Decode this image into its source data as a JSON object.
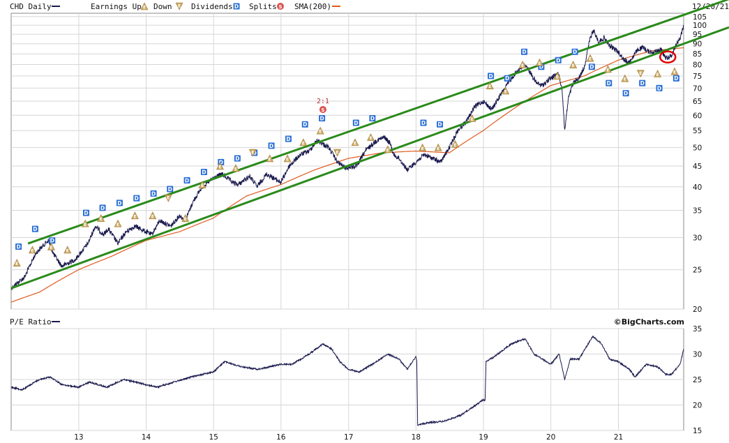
{
  "colors": {
    "price": "#1a1a4e",
    "sma": "#e05a1e",
    "trend": "#2a8a1a",
    "grid": "#d6d6d6",
    "dividend": "#2a6fd6",
    "earnings": "#c8a560",
    "split": "#d9534f",
    "highlight": "#e00000"
  },
  "chart_data": [
    {
      "type": "line",
      "title": "",
      "legend": {
        "placement": "top",
        "symbol": "CHD Daily",
        "items": [
          {
            "label": "Earnings Up",
            "icon": "E",
            "kind": "earnings-up"
          },
          {
            "label": "Down",
            "icon": "E",
            "kind": "earnings-down"
          },
          {
            "label": "Dividends",
            "icon": "D",
            "kind": "dividend"
          },
          {
            "label": "Splits",
            "icon": "S",
            "kind": "split"
          },
          {
            "label": "SMA(200)",
            "icon": "",
            "kind": "sma"
          }
        ]
      },
      "date_label": "12/20/21",
      "y_scale": "log",
      "ylim": [
        20,
        107
      ],
      "y_ticks": [
        "105",
        "100",
        "95",
        "90",
        "85",
        "80",
        "75",
        "70",
        "65",
        "60",
        "55",
        "50",
        "45",
        "40",
        "35",
        "30",
        "25",
        "20"
      ],
      "x_range": [
        "2012-01-01",
        "2021-12-20"
      ],
      "x_ticks": [
        "13",
        "14",
        "15",
        "16",
        "17",
        "18",
        "19",
        "20",
        "21"
      ],
      "grid": true,
      "price_anchors": [
        [
          "2012-01-01",
          22.5
        ],
        [
          "2012-03-15",
          24
        ],
        [
          "2012-05-15",
          27.5
        ],
        [
          "2012-07-20",
          29.5
        ],
        [
          "2012-08-20",
          27.2
        ],
        [
          "2012-10-01",
          25.5
        ],
        [
          "2012-12-15",
          26.5
        ],
        [
          "2013-02-20",
          29
        ],
        [
          "2013-04-01",
          32
        ],
        [
          "2013-05-15",
          30.5
        ],
        [
          "2013-06-10",
          31.5
        ],
        [
          "2013-08-01",
          29
        ],
        [
          "2013-09-15",
          31
        ],
        [
          "2013-11-01",
          32
        ],
        [
          "2013-12-31",
          31
        ],
        [
          "2014-02-01",
          30.5
        ],
        [
          "2014-03-15",
          33
        ],
        [
          "2014-05-15",
          32
        ],
        [
          "2014-07-01",
          34
        ],
        [
          "2014-08-01",
          33
        ],
        [
          "2014-09-15",
          37
        ],
        [
          "2014-11-01",
          40
        ],
        [
          "2014-12-31",
          42
        ],
        [
          "2015-02-15",
          43
        ],
        [
          "2015-04-15",
          41
        ],
        [
          "2015-05-15",
          40.5
        ],
        [
          "2015-07-15",
          42.5
        ],
        [
          "2015-08-25",
          40
        ],
        [
          "2015-10-15",
          43
        ],
        [
          "2015-12-31",
          41
        ],
        [
          "2016-02-15",
          45
        ],
        [
          "2016-04-15",
          48
        ],
        [
          "2016-06-01",
          49
        ],
        [
          "2016-07-15",
          52
        ],
        [
          "2016-09-15",
          50
        ],
        [
          "2016-11-01",
          46
        ],
        [
          "2016-12-15",
          44.5
        ],
        [
          "2017-02-15",
          45
        ],
        [
          "2017-04-01",
          49
        ],
        [
          "2017-06-01",
          52
        ],
        [
          "2017-07-15",
          53
        ],
        [
          "2017-08-15",
          51
        ],
        [
          "2017-09-01",
          48
        ],
        [
          "2017-10-01",
          47
        ],
        [
          "2017-11-15",
          44
        ],
        [
          "2017-12-31",
          46
        ],
        [
          "2018-02-15",
          48
        ],
        [
          "2018-04-01",
          47
        ],
        [
          "2018-05-15",
          46
        ],
        [
          "2018-07-01",
          50
        ],
        [
          "2018-08-15",
          55
        ],
        [
          "2018-10-01",
          58
        ],
        [
          "2018-11-15",
          63
        ],
        [
          "2018-12-31",
          65
        ],
        [
          "2019-02-15",
          62
        ],
        [
          "2019-04-01",
          67
        ],
        [
          "2019-05-15",
          72
        ],
        [
          "2019-07-01",
          77
        ],
        [
          "2019-08-15",
          80
        ],
        [
          "2019-09-15",
          76
        ],
        [
          "2019-10-15",
          72
        ],
        [
          "2019-11-15",
          71
        ],
        [
          "2019-12-31",
          74
        ],
        [
          "2020-02-10",
          76
        ],
        [
          "2020-03-01",
          70
        ],
        [
          "2020-03-16",
          55
        ],
        [
          "2020-03-20",
          57
        ],
        [
          "2020-04-05",
          66
        ],
        [
          "2020-05-01",
          72
        ],
        [
          "2020-06-01",
          74
        ],
        [
          "2020-07-01",
          79
        ],
        [
          "2020-08-01",
          93
        ],
        [
          "2020-08-20",
          97
        ],
        [
          "2020-09-15",
          91
        ],
        [
          "2020-10-15",
          93
        ],
        [
          "2020-11-15",
          89
        ],
        [
          "2020-12-31",
          86
        ],
        [
          "2021-02-01",
          82
        ],
        [
          "2021-03-01",
          81
        ],
        [
          "2021-04-15",
          87
        ],
        [
          "2021-05-15",
          88
        ],
        [
          "2021-06-15",
          86
        ],
        [
          "2021-07-15",
          86
        ],
        [
          "2021-08-20",
          87
        ],
        [
          "2021-09-15",
          83
        ],
        [
          "2021-10-15",
          84
        ],
        [
          "2021-11-01",
          88
        ],
        [
          "2021-12-01",
          93
        ],
        [
          "2021-12-20",
          100
        ]
      ],
      "sma_anchors": [
        [
          "2012-01-01",
          20.8
        ],
        [
          "2012-06-01",
          22
        ],
        [
          "2012-12-31",
          25
        ],
        [
          "2013-06-30",
          27
        ],
        [
          "2013-12-31",
          29.5
        ],
        [
          "2014-06-30",
          31
        ],
        [
          "2014-12-31",
          33.5
        ],
        [
          "2015-06-30",
          38
        ],
        [
          "2015-12-31",
          40.5
        ],
        [
          "2016-06-30",
          44
        ],
        [
          "2016-12-31",
          47
        ],
        [
          "2017-06-30",
          48.5
        ],
        [
          "2017-12-31",
          49
        ],
        [
          "2018-06-30",
          48.5
        ],
        [
          "2018-12-31",
          55
        ],
        [
          "2019-06-30",
          63
        ],
        [
          "2019-12-31",
          71
        ],
        [
          "2020-06-30",
          75
        ],
        [
          "2020-12-31",
          82
        ],
        [
          "2021-06-30",
          86.5
        ],
        [
          "2021-12-20",
          88
        ]
      ],
      "trendlines": [
        {
          "name": "upper",
          "points": [
            [
              "2012-04-01",
              29
            ],
            [
              "2021-12-20",
              106
            ]
          ]
        },
        {
          "name": "lower",
          "points": [
            [
              "2012-01-01",
              22.5
            ],
            [
              "2021-12-20",
              90
            ]
          ]
        }
      ],
      "split_events": [
        {
          "date": "2016-08-15",
          "label": "2:1",
          "price": 62
        }
      ],
      "dividend_events": [
        [
          "2012-02-10",
          28.5
        ],
        [
          "2012-05-10",
          31.5
        ],
        [
          "2012-08-10",
          29.5
        ],
        [
          "2013-02-10",
          34.5
        ],
        [
          "2013-05-10",
          35.5
        ],
        [
          "2013-08-10",
          36.5
        ],
        [
          "2013-11-10",
          37.5
        ],
        [
          "2014-02-10",
          38.5
        ],
        [
          "2014-05-10",
          39.5
        ],
        [
          "2014-08-10",
          41.5
        ],
        [
          "2014-11-10",
          43.5
        ],
        [
          "2015-02-10",
          46
        ],
        [
          "2015-05-10",
          47
        ],
        [
          "2015-08-10",
          48.5
        ],
        [
          "2015-11-10",
          50.5
        ],
        [
          "2016-02-10",
          52.5
        ],
        [
          "2016-05-10",
          57
        ],
        [
          "2016-08-10",
          59
        ],
        [
          "2017-02-10",
          57.5
        ],
        [
          "2017-05-10",
          59
        ],
        [
          "2018-02-10",
          57.5
        ],
        [
          "2018-05-10",
          57
        ],
        [
          "2019-02-10",
          75
        ],
        [
          "2019-05-10",
          74
        ],
        [
          "2019-08-10",
          86
        ],
        [
          "2019-11-10",
          79
        ],
        [
          "2020-02-10",
          82
        ],
        [
          "2020-05-10",
          86
        ],
        [
          "2020-08-10",
          79
        ],
        [
          "2020-11-10",
          72
        ],
        [
          "2021-02-10",
          68
        ],
        [
          "2021-05-10",
          72
        ],
        [
          "2021-08-10",
          70
        ],
        [
          "2021-11-10",
          74
        ]
      ],
      "earnings_events": [
        [
          "2012-02-01",
          26,
          "up"
        ],
        [
          "2012-04-25",
          28,
          "up"
        ],
        [
          "2012-08-05",
          28.5,
          "up"
        ],
        [
          "2012-11-01",
          28,
          "up"
        ],
        [
          "2013-02-05",
          32.5,
          "up"
        ],
        [
          "2013-05-01",
          33.5,
          "up"
        ],
        [
          "2013-08-01",
          32.5,
          "up"
        ],
        [
          "2013-11-01",
          34,
          "up"
        ],
        [
          "2014-02-05",
          34,
          "up"
        ],
        [
          "2014-05-01",
          37.5,
          "down"
        ],
        [
          "2014-08-01",
          33.5,
          "up"
        ],
        [
          "2014-11-01",
          40.5,
          "up"
        ],
        [
          "2015-02-05",
          45,
          "up"
        ],
        [
          "2015-05-01",
          44.5,
          "up"
        ],
        [
          "2015-08-01",
          48.5,
          "down"
        ],
        [
          "2015-11-01",
          47,
          "up"
        ],
        [
          "2016-02-05",
          47,
          "up"
        ],
        [
          "2016-05-01",
          51.5,
          "up"
        ],
        [
          "2016-08-01",
          55,
          "up"
        ],
        [
          "2016-11-01",
          48.5,
          "down"
        ],
        [
          "2017-02-05",
          51.5,
          "up"
        ],
        [
          "2017-05-01",
          53,
          "up"
        ],
        [
          "2017-08-01",
          49.5,
          "up"
        ],
        [
          "2018-02-05",
          50,
          "up"
        ],
        [
          "2018-05-01",
          50,
          "up"
        ],
        [
          "2018-08-01",
          51,
          "up"
        ],
        [
          "2018-11-01",
          59,
          "up"
        ],
        [
          "2019-02-05",
          71,
          "up"
        ],
        [
          "2019-05-01",
          69,
          "up"
        ],
        [
          "2019-08-01",
          80,
          "up"
        ],
        [
          "2019-11-01",
          81,
          "up"
        ],
        [
          "2020-02-05",
          75,
          "up"
        ],
        [
          "2020-05-01",
          80,
          "up"
        ],
        [
          "2020-08-01",
          83,
          "up"
        ],
        [
          "2020-11-05",
          78,
          "up"
        ],
        [
          "2021-02-05",
          74,
          "up"
        ],
        [
          "2021-05-01",
          76,
          "down"
        ],
        [
          "2021-08-01",
          76,
          "up"
        ],
        [
          "2021-11-01",
          77,
          "up"
        ]
      ],
      "highlight": {
        "date": "2021-09-25",
        "price": 83.5
      }
    },
    {
      "type": "line",
      "legend": {
        "placement": "top-left",
        "label": "P/E Ratio"
      },
      "brand": "©BigCharts.com",
      "ylim": [
        15,
        35
      ],
      "y_ticks": [
        "35",
        "30",
        "25",
        "20",
        "15"
      ],
      "x_ticks": [
        "13",
        "14",
        "15",
        "16",
        "17",
        "18",
        "19",
        "20",
        "21"
      ],
      "grid": true,
      "pe_anchors": [
        [
          "2012-01-01",
          23.5
        ],
        [
          "2012-03-01",
          23
        ],
        [
          "2012-06-01",
          25
        ],
        [
          "2012-08-01",
          25.5
        ],
        [
          "2012-10-01",
          24
        ],
        [
          "2012-12-31",
          23.5
        ],
        [
          "2013-03-01",
          24.5
        ],
        [
          "2013-06-01",
          23.5
        ],
        [
          "2013-09-01",
          25
        ],
        [
          "2013-12-31",
          24
        ],
        [
          "2014-03-01",
          23.5
        ],
        [
          "2014-06-01",
          24.5
        ],
        [
          "2014-09-01",
          25.5
        ],
        [
          "2014-12-31",
          26.5
        ],
        [
          "2015-03-01",
          28.5
        ],
        [
          "2015-06-01",
          27.5
        ],
        [
          "2015-09-01",
          27
        ],
        [
          "2015-12-31",
          28
        ],
        [
          "2016-03-01",
          28
        ],
        [
          "2016-06-01",
          30
        ],
        [
          "2016-08-15",
          32
        ],
        [
          "2016-10-01",
          31
        ],
        [
          "2016-11-15",
          28.5
        ],
        [
          "2016-12-31",
          27
        ],
        [
          "2017-03-01",
          26.5
        ],
        [
          "2017-06-01",
          28.5
        ],
        [
          "2017-08-01",
          30
        ],
        [
          "2017-10-01",
          29
        ],
        [
          "2017-11-15",
          27
        ],
        [
          "2017-12-31",
          29.5
        ],
        [
          "2018-01-05",
          28.5
        ],
        [
          "2018-01-10",
          16
        ],
        [
          "2018-03-01",
          16.5
        ],
        [
          "2018-06-01",
          16.8
        ],
        [
          "2018-09-01",
          18
        ],
        [
          "2018-11-01",
          19.5
        ],
        [
          "2018-12-31",
          21
        ],
        [
          "2019-01-10",
          21
        ],
        [
          "2019-01-15",
          28.5
        ],
        [
          "2019-03-01",
          29.5
        ],
        [
          "2019-06-01",
          32
        ],
        [
          "2019-08-15",
          33
        ],
        [
          "2019-10-01",
          30
        ],
        [
          "2019-12-31",
          28
        ],
        [
          "2020-02-15",
          30
        ],
        [
          "2020-03-16",
          25
        ],
        [
          "2020-04-15",
          29
        ],
        [
          "2020-06-01",
          29
        ],
        [
          "2020-08-15",
          33.5
        ],
        [
          "2020-10-01",
          32
        ],
        [
          "2020-11-15",
          29
        ],
        [
          "2020-12-31",
          28.5
        ],
        [
          "2021-03-01",
          27
        ],
        [
          "2021-04-01",
          25.5
        ],
        [
          "2021-06-01",
          28
        ],
        [
          "2021-08-01",
          27.5
        ],
        [
          "2021-09-15",
          26
        ],
        [
          "2021-10-15",
          26
        ],
        [
          "2021-12-01",
          28
        ],
        [
          "2021-12-20",
          31
        ]
      ]
    }
  ]
}
